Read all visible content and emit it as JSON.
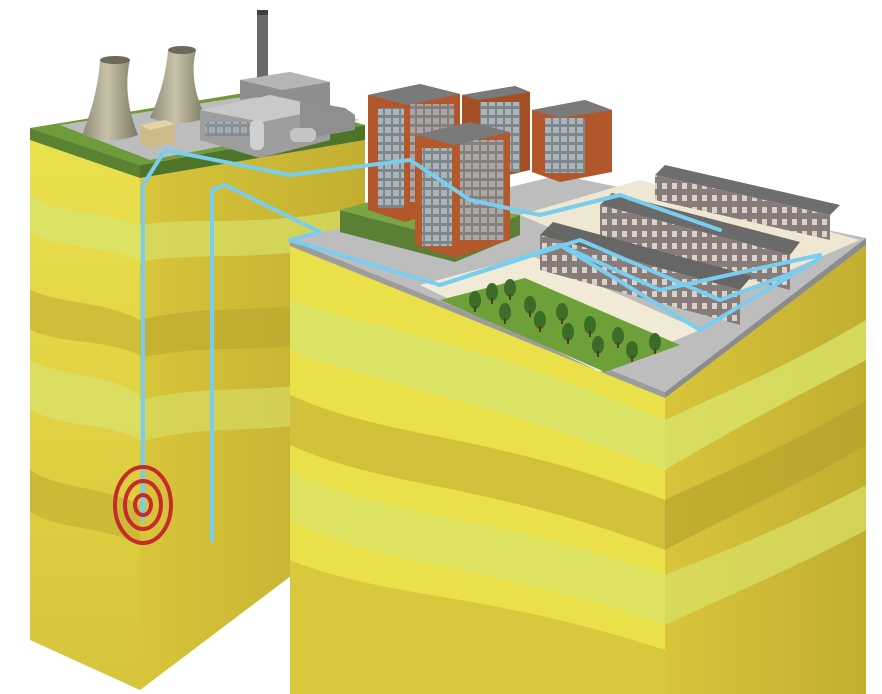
{
  "diagram": {
    "kind": "geothermal-district-heating-cross-section",
    "colors": {
      "background": "#ffffff",
      "soil_light": "#f2ee58",
      "soil_mid": "#e2d23a",
      "soil_dark": "#c7b534",
      "soil_band": "#d8e46a",
      "soil_shadow": "#b9a230",
      "grass": "#6f9b3a",
      "surface": "#bdbdbd",
      "paving": "#f0ead7",
      "pipe": "#79cdee",
      "heat_source": "#c62a2a",
      "brick": "#b2572b",
      "brick_dark": "#8d3f1f",
      "window": "#9aa4aa",
      "roof": "#6e6e6e",
      "house": "#8a8080",
      "tower": "#a7a18a",
      "tree": "#3b6d28"
    },
    "icons": [
      "cooling-tower-icon",
      "chimney-icon",
      "tree-icon",
      "heat-source-rings-icon"
    ]
  }
}
